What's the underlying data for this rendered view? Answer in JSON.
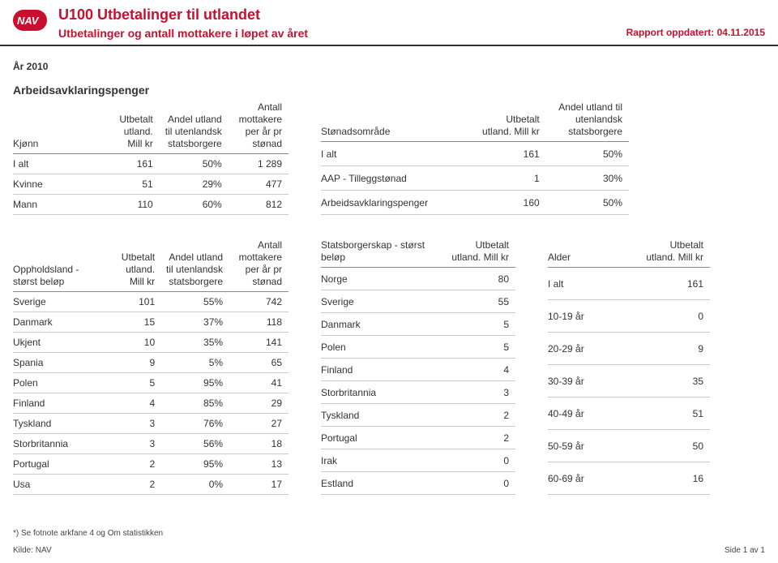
{
  "header": {
    "title": "U100 Utbetalinger til utlandet",
    "subtitle": "Utbetalinger og antall mottakere i løpet av året",
    "report_date": "Rapport oppdatert: 04.11.2015"
  },
  "year_line": "År 2010",
  "section_title": "Arbeidsavklaringspenger",
  "colors": {
    "brand": "#c8102e",
    "border": "#333333",
    "row_border": "#cccccc",
    "header_border": "#888888",
    "background": "#ffffff"
  },
  "tables": {
    "kjonn": {
      "headers": [
        "Kjønn",
        "Utbetalt utland. Mill kr",
        "Andel utland til utenlandsk statsborgere",
        "Antall mottakere per år pr stønad"
      ],
      "rows": [
        [
          "I alt",
          "161",
          "50%",
          "1 289"
        ],
        [
          "Kvinne",
          "51",
          "29%",
          "477"
        ],
        [
          "Mann",
          "110",
          "60%",
          "812"
        ]
      ]
    },
    "stonad": {
      "headers": [
        "Stønadsområde",
        "Utbetalt utland. Mill kr",
        "Andel utland til utenlandsk statsborgere"
      ],
      "rows": [
        [
          "I alt",
          "161",
          "50%"
        ],
        [
          "AAP - Tilleggstønad",
          "1",
          "30%"
        ],
        [
          "Arbeidsavklaringspenger",
          "160",
          "50%"
        ]
      ]
    },
    "opphold": {
      "headers": [
        "Oppholdsland - størst beløp",
        "Utbetalt utland. Mill kr",
        "Andel utland til utenlandsk statsborgere",
        "Antall mottakere per år pr stønad"
      ],
      "rows": [
        [
          "Sverige",
          "101",
          "55%",
          "742"
        ],
        [
          "Danmark",
          "15",
          "37%",
          "118"
        ],
        [
          "Ukjent",
          "10",
          "35%",
          "141"
        ],
        [
          "Spania",
          "9",
          "5%",
          "65"
        ],
        [
          "Polen",
          "5",
          "95%",
          "41"
        ],
        [
          "Finland",
          "4",
          "85%",
          "29"
        ],
        [
          "Tyskland",
          "3",
          "76%",
          "27"
        ],
        [
          "Storbritannia",
          "3",
          "56%",
          "18"
        ],
        [
          "Portugal",
          "2",
          "95%",
          "13"
        ],
        [
          "Usa",
          "2",
          "0%",
          "17"
        ]
      ]
    },
    "statsborger": {
      "headers": [
        "Statsborgerskap - størst beløp",
        "Utbetalt utland. Mill kr"
      ],
      "rows": [
        [
          "Norge",
          "80"
        ],
        [
          "Sverige",
          "55"
        ],
        [
          "Danmark",
          "5"
        ],
        [
          "Polen",
          "5"
        ],
        [
          "Finland",
          "4"
        ],
        [
          "Storbritannia",
          "3"
        ],
        [
          "Tyskland",
          "2"
        ],
        [
          "Portugal",
          "2"
        ],
        [
          "Irak",
          "0"
        ],
        [
          "Estland",
          "0"
        ]
      ]
    },
    "alder": {
      "headers": [
        "Alder",
        "Utbetalt utland. Mill kr"
      ],
      "rows": [
        [
          "I alt",
          "161"
        ],
        [
          "10-19 år",
          "0"
        ],
        [
          "20-29 år",
          "9"
        ],
        [
          "30-39 år",
          "35"
        ],
        [
          "40-49 år",
          "51"
        ],
        [
          "50-59 år",
          "50"
        ],
        [
          "60-69 år",
          "16"
        ]
      ]
    }
  },
  "footnote": "*) Se fotnote arkfane 4 og Om statistikken",
  "footer": {
    "left": "Kilde: NAV",
    "right": "Side 1 av 1"
  }
}
